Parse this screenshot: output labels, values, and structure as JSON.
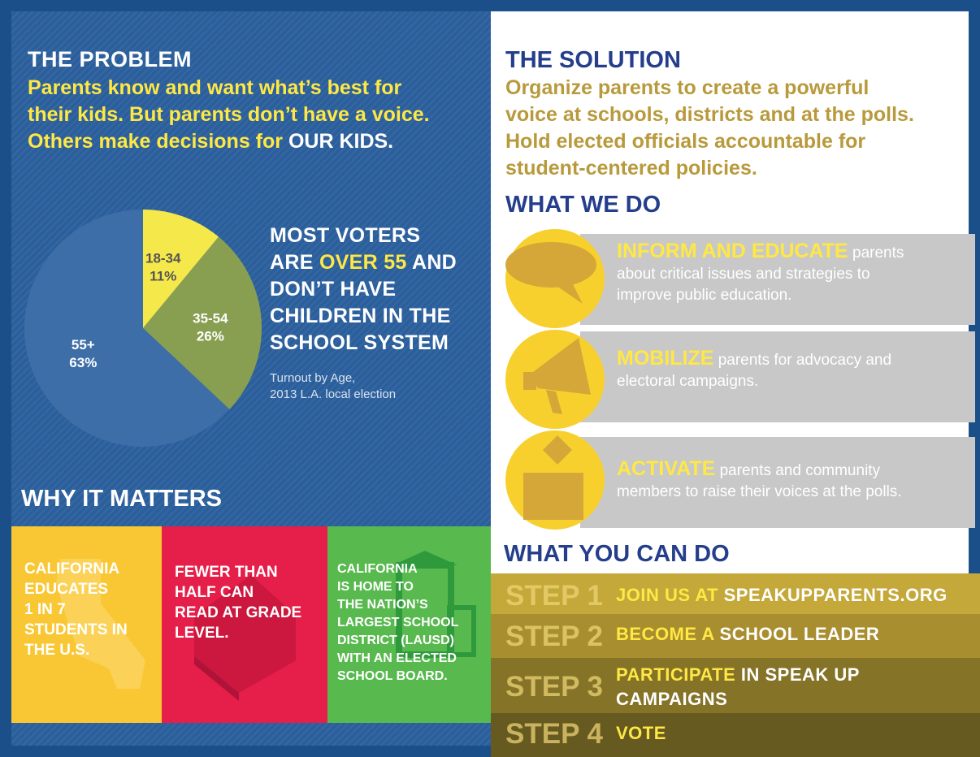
{
  "problem": {
    "heading": "THE PROBLEM",
    "line1": "Parents know and want what’s best for",
    "line2": "their kids. But parents don’t have a voice.",
    "line3_yellow": "Others make decisions for ",
    "line3_white": "OUR KIDS."
  },
  "chart_data": {
    "type": "pie",
    "title": "",
    "caption_line1": "Turnout by Age,",
    "caption_line2": "2013 L.A. local election",
    "slices": [
      {
        "label": "18-34",
        "value": 11,
        "display": "11%",
        "color": "#f5e84a"
      },
      {
        "label": "35-54",
        "value": 26,
        "display": "26%",
        "color": "#889f52"
      },
      {
        "label": "55+",
        "value": 63,
        "display": "63%",
        "color": "#3e6ea8"
      }
    ]
  },
  "voters": {
    "line1": "MOST VOTERS",
    "line2_a": "ARE ",
    "line2_b": "OVER 55",
    "line2_c": " AND",
    "line3": "DON’T HAVE",
    "line4": "CHILDREN IN THE",
    "line5": "SCHOOL SYSTEM"
  },
  "why": {
    "heading": "WHY IT MATTERS",
    "boxes": [
      {
        "text": "CALIFORNIA EDUCATES 1 IN 7 STUDENTS IN THE U.S.",
        "color": "#f9c733"
      },
      {
        "text": "FEWER THAN HALF CAN READ AT GRADE LEVEL.",
        "color": "#e51e4a"
      },
      {
        "text": "CALIFORNIA IS HOME TO THE NATION’S LARGEST SCHOOL DISTRICT (LAUSD) WITH AN ELECTED SCHOOL BOARD.",
        "color": "#58b94f"
      }
    ],
    "box1_lines": [
      "CALIFORNIA",
      "EDUCATES",
      "1 IN 7",
      "STUDENTS IN",
      "THE U.S."
    ],
    "box2_lines": [
      "FEWER THAN",
      "HALF CAN",
      "READ AT GRADE",
      "LEVEL."
    ],
    "box3_lines": [
      "CALIFORNIA",
      "IS HOME TO",
      "THE NATION’S",
      "LARGEST SCHOOL",
      "DISTRICT (LAUSD)",
      "WITH AN ELECTED",
      "SCHOOL BOARD."
    ]
  },
  "solution": {
    "heading": "THE SOLUTION",
    "lines": [
      "Organize parents to create a powerful",
      "voice at schools, districts and at the polls.",
      "Hold elected officials accountable for",
      "student-centered policies."
    ]
  },
  "what_we_do": {
    "heading": "WHAT WE DO",
    "items": [
      {
        "key": "INFORM AND EDUCATE",
        "rest_line1": " parents",
        "line2": "about critical issues and strategies to",
        "line3": "improve public education.",
        "icon": "speech-bubble-icon"
      },
      {
        "key": "MOBILIZE",
        "rest_line1": " parents for advocacy and",
        "line2": "electoral campaigns.",
        "icon": "megaphone-icon"
      },
      {
        "key": "ACTIVATE",
        "rest_line1": " parents and community",
        "line2": "members to raise their voices at the polls.",
        "icon": "ballot-box-icon"
      }
    ]
  },
  "what_you_can_do": {
    "heading": "WHAT YOU CAN DO",
    "steps": [
      {
        "num": "STEP 1",
        "yellow": "JOIN US AT ",
        "white": "SPEAKUPPARENTS.ORG",
        "color": "#c4a83a"
      },
      {
        "num": "STEP 2",
        "yellow": "BECOME A ",
        "white": "SCHOOL LEADER",
        "color": "#a98e30"
      },
      {
        "num": "STEP 3",
        "yellow": "PARTICIPATE",
        "white": " IN SPEAK UP",
        "line2": "CAMPAIGNS",
        "color": "#857327"
      },
      {
        "num": "STEP 4",
        "yellow": "VOTE",
        "white": "",
        "color": "#665a20"
      }
    ]
  }
}
